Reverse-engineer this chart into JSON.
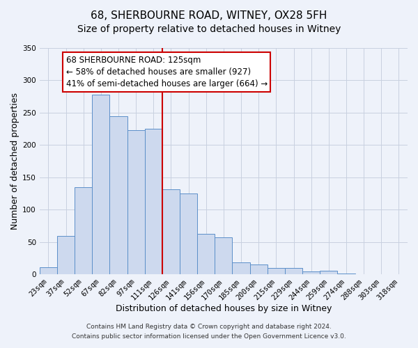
{
  "title": "68, SHERBOURNE ROAD, WITNEY, OX28 5FH",
  "subtitle": "Size of property relative to detached houses in Witney",
  "xlabel": "Distribution of detached houses by size in Witney",
  "ylabel": "Number of detached properties",
  "bar_labels": [
    "23sqm",
    "37sqm",
    "52sqm",
    "67sqm",
    "82sqm",
    "97sqm",
    "111sqm",
    "126sqm",
    "141sqm",
    "156sqm",
    "170sqm",
    "185sqm",
    "200sqm",
    "215sqm",
    "229sqm",
    "244sqm",
    "259sqm",
    "274sqm",
    "288sqm",
    "303sqm",
    "318sqm"
  ],
  "bar_values": [
    11,
    60,
    135,
    278,
    245,
    223,
    225,
    132,
    125,
    63,
    57,
    19,
    16,
    10,
    10,
    5,
    6,
    1,
    0,
    0,
    0
  ],
  "bar_color": "#cdd9ee",
  "bar_edge_color": "#5b8fc9",
  "vline_color": "#cc0000",
  "vline_x_index": 7,
  "annotation_text": "68 SHERBOURNE ROAD: 125sqm\n← 58% of detached houses are smaller (927)\n41% of semi-detached houses are larger (664) →",
  "annotation_box_color": "#ffffff",
  "annotation_box_edge": "#cc0000",
  "ylim": [
    0,
    350
  ],
  "yticks": [
    0,
    50,
    100,
    150,
    200,
    250,
    300,
    350
  ],
  "grid_color": "#c8d0e0",
  "background_color": "#eef2fa",
  "footer1": "Contains HM Land Registry data © Crown copyright and database right 2024.",
  "footer2": "Contains public sector information licensed under the Open Government Licence v3.0.",
  "title_fontsize": 11,
  "xlabel_fontsize": 9,
  "ylabel_fontsize": 9,
  "tick_fontsize": 7.5,
  "annotation_fontsize": 8.5,
  "footer_fontsize": 6.5
}
